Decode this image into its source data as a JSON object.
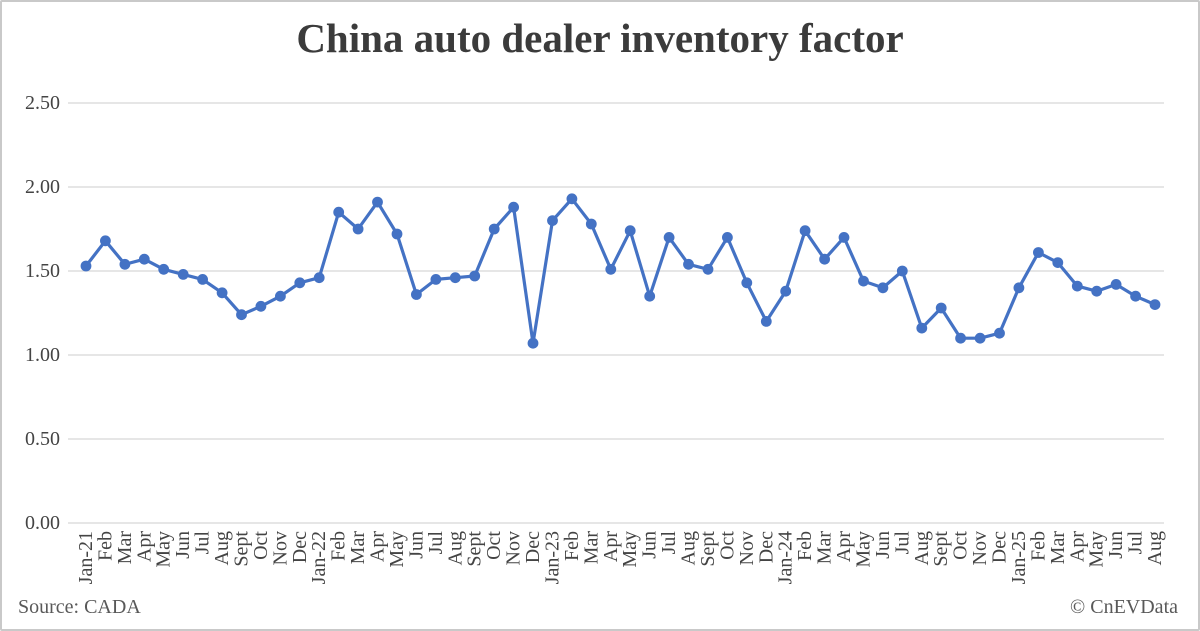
{
  "chart_data": {
    "type": "line",
    "title": "China auto dealer inventory factor",
    "xlabel": "",
    "ylabel": "",
    "ylim": [
      0,
      2.5
    ],
    "yticks": [
      "0.00",
      "0.50",
      "1.00",
      "1.50",
      "2.00",
      "2.50"
    ],
    "grid": "horizontal",
    "legend_position": "none",
    "marker": "circle",
    "categories": [
      "Jan-21",
      "Feb",
      "Mar",
      "Apr",
      "May",
      "Jun",
      "Jul",
      "Aug",
      "Sept",
      "Oct",
      "Nov",
      "Dec",
      "Jan-22",
      "Feb",
      "Mar",
      "Apr",
      "May",
      "Jun",
      "Jul",
      "Aug",
      "Sept",
      "Oct",
      "Nov",
      "Dec",
      "Jan-23",
      "Feb",
      "Mar",
      "Apr",
      "May",
      "Jun",
      "Jul",
      "Aug",
      "Sept",
      "Oct",
      "Nov",
      "Dec",
      "Jan-24",
      "Feb",
      "Mar",
      "Apr",
      "May",
      "Jun",
      "Jul",
      "Aug",
      "Sept",
      "Oct",
      "Nov",
      "Dec",
      "Jan-25",
      "Feb",
      "Mar",
      "Apr",
      "May",
      "Jun",
      "Jul",
      "Aug"
    ],
    "series": [
      {
        "name": "China auto dealer inventory factor",
        "values": [
          1.53,
          1.68,
          1.54,
          1.57,
          1.51,
          1.48,
          1.45,
          1.37,
          1.24,
          1.29,
          1.35,
          1.43,
          1.46,
          1.85,
          1.75,
          1.91,
          1.72,
          1.36,
          1.45,
          1.46,
          1.47,
          1.75,
          1.88,
          1.07,
          1.8,
          1.93,
          1.78,
          1.51,
          1.74,
          1.35,
          1.7,
          1.54,
          1.51,
          1.7,
          1.43,
          1.2,
          1.38,
          1.74,
          1.57,
          1.7,
          1.44,
          1.4,
          1.5,
          1.16,
          1.28,
          1.1,
          1.1,
          1.13,
          1.4,
          1.61,
          1.55,
          1.41,
          1.38,
          1.42,
          1.35,
          1.3
        ]
      }
    ]
  },
  "footer": {
    "source": "Source: CADA",
    "credit": "© CnEVData"
  },
  "colors": {
    "line": "#4472C4",
    "gridline": "#D8D8D8",
    "axis_text": "#444444",
    "title_text": "#3B3B3B",
    "footer_text": "#595959",
    "frame_border": "#C9C9C9"
  }
}
